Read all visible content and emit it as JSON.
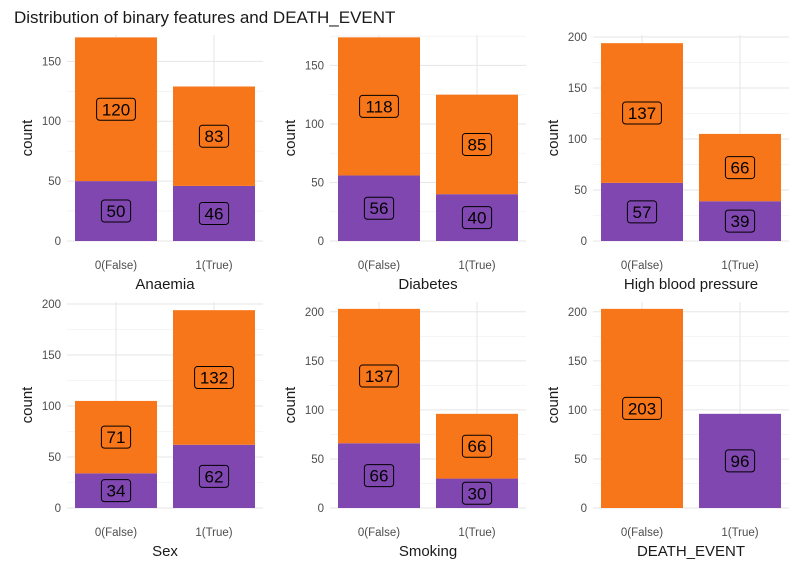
{
  "title": "Distribution of binary features and DEATH_EVENT",
  "colors": {
    "false_event": "#F8761A",
    "true_event": "#7F47AF"
  },
  "chart_data": [
    {
      "type": "bar",
      "stacked": true,
      "xlabel": "Anaemia",
      "ylabel": "count",
      "categories": [
        "0(False)",
        "1(True)"
      ],
      "ylim": [
        0,
        172
      ],
      "yticks": [
        0,
        50,
        100,
        150
      ],
      "series": [
        {
          "values": [
            50,
            46
          ]
        },
        {
          "values": [
            120,
            83
          ]
        }
      ]
    },
    {
      "type": "bar",
      "stacked": true,
      "xlabel": "Diabetes",
      "ylabel": "count",
      "categories": [
        "0(False)",
        "1(True)"
      ],
      "ylim": [
        0,
        176
      ],
      "yticks": [
        0,
        50,
        100,
        150
      ],
      "series": [
        {
          "values": [
            56,
            40
          ]
        },
        {
          "values": [
            118,
            85
          ]
        }
      ]
    },
    {
      "type": "bar",
      "stacked": true,
      "xlabel": "High blood pressure",
      "ylabel": "count",
      "categories": [
        "0(False)",
        "1(True)"
      ],
      "ylim": [
        0,
        202
      ],
      "yticks": [
        0,
        50,
        100,
        150,
        200
      ],
      "series": [
        {
          "values": [
            57,
            39
          ]
        },
        {
          "values": [
            137,
            66
          ]
        }
      ]
    },
    {
      "type": "bar",
      "stacked": true,
      "xlabel": "Sex",
      "ylabel": "count",
      "categories": [
        "0(False)",
        "1(True)"
      ],
      "ylim": [
        0,
        202
      ],
      "yticks": [
        0,
        50,
        100,
        150,
        200
      ],
      "series": [
        {
          "values": [
            34,
            62
          ]
        },
        {
          "values": [
            71,
            132
          ]
        }
      ]
    },
    {
      "type": "bar",
      "stacked": true,
      "xlabel": "Smoking",
      "ylabel": "count",
      "categories": [
        "0(False)",
        "1(True)"
      ],
      "ylim": [
        0,
        210
      ],
      "yticks": [
        0,
        50,
        100,
        150,
        200
      ],
      "series": [
        {
          "values": [
            66,
            30
          ]
        },
        {
          "values": [
            137,
            66
          ]
        }
      ]
    },
    {
      "type": "bar",
      "stacked": true,
      "xlabel": "DEATH_EVENT",
      "ylabel": "count",
      "categories": [
        "0(False)",
        "1(True)"
      ],
      "ylim": [
        0,
        210
      ],
      "yticks": [
        0,
        50,
        100,
        150,
        200
      ],
      "series": [
        {
          "values": [
            0,
            96
          ]
        },
        {
          "values": [
            203,
            0
          ]
        }
      ]
    }
  ]
}
